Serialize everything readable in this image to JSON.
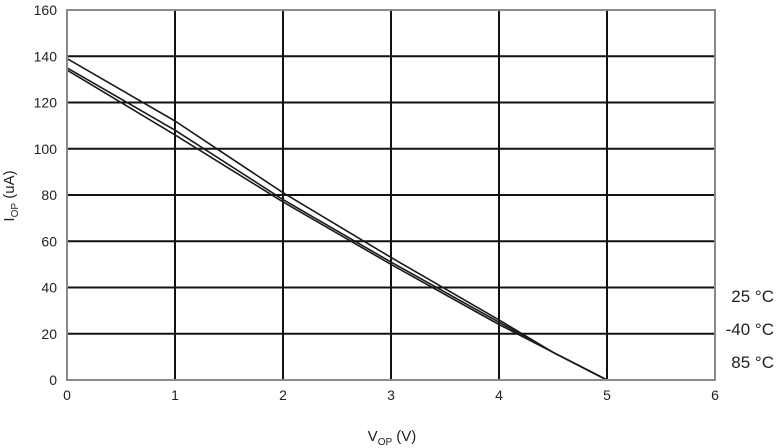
{
  "chart_data": {
    "type": "line",
    "title": "",
    "xlabel": {
      "main": "V",
      "sub": "OP",
      "unit": " (V)"
    },
    "ylabel": {
      "main": "I",
      "sub": "OP",
      "unit": " (uA)"
    },
    "xlim": [
      0,
      6
    ],
    "ylim": [
      0,
      160
    ],
    "xticks": [
      0,
      1,
      2,
      3,
      4,
      5,
      6
    ],
    "yticks": [
      0,
      20,
      40,
      60,
      80,
      100,
      120,
      140,
      160
    ],
    "grid": true,
    "legend_position": "right",
    "series": [
      {
        "name": "25 °C",
        "x": [
          0,
          1,
          2,
          3,
          4,
          4.5,
          5
        ],
        "y": [
          139,
          112,
          81,
          53,
          26,
          12,
          0
        ]
      },
      {
        "name": "-40 °C",
        "x": [
          0,
          1,
          2,
          3,
          4,
          4.5,
          5
        ],
        "y": [
          135,
          108,
          78,
          51,
          25,
          12,
          0
        ]
      },
      {
        "name": "85 °C",
        "x": [
          0,
          1,
          2,
          3,
          4,
          4.5,
          5
        ],
        "y": [
          134,
          106,
          77,
          50,
          24,
          12,
          0
        ]
      }
    ],
    "line_color": "#1a1a1a",
    "grid_color": "#111111",
    "frame_color": "#8a8a8a"
  }
}
